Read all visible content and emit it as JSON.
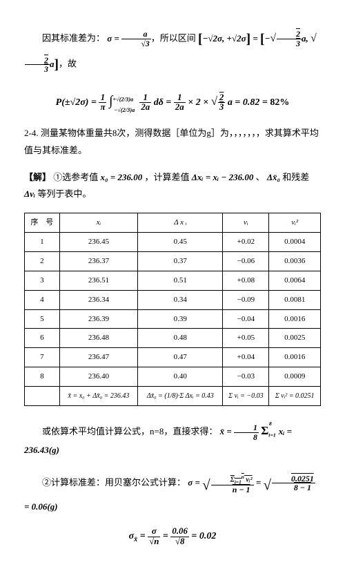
{
  "line1_cn1": "因其标准差为：",
  "line1_cn2": "，所以区间",
  "line1_cn3": "，故",
  "formula1a": "σ = a⁄√3",
  "formula1b": "[−√2σ, +√2σ]",
  "formula1c_left": "−",
  "formula1c_right": "a,",
  "formula1c_num": "2",
  "formula1c_den": "3",
  "formula2_lhs": "P(±√2σ) =",
  "formula2_mid1": "dδ =",
  "formula2_mid2": "× 2 ×",
  "formula2_rhs": "a = 0.82 = 82%",
  "problem_label": "2-4.",
  "problem_text": "测量某物体重量共8次，测得数据［单位为g］为，，，，，，，求其算术平均值与其标准差。",
  "solution_label": "【解】",
  "step1_cn1": "①选参考值 ",
  "step1_x0": "x₀ = 236.00",
  "step1_cn2": "，计算差值 ",
  "step1_dx": "Δxᵢ = xᵢ − 236.00",
  "step1_cn3": "、",
  "step1_dx0": "Δx̄₀",
  "step1_cn4": " 和残差 ",
  "step1_dv": "Δvᵢ",
  "step1_cn5": " 等列于表中。",
  "table": {
    "headers": [
      "序　号",
      "xᵢ",
      "Δ x ᵢ",
      "vᵢ",
      "vᵢ²"
    ],
    "rows": [
      [
        "1",
        "236.45",
        "0.45",
        "+0.02",
        "0.0004"
      ],
      [
        "2",
        "236.37",
        "0.37",
        "−0.06",
        "0.0036"
      ],
      [
        "3",
        "236.51",
        "0.51",
        "+0.08",
        "0.0064"
      ],
      [
        "4",
        "236.34",
        "0.34",
        "−0.09",
        "0.0081"
      ],
      [
        "5",
        "236.39",
        "0.39",
        "−0.04",
        "0.0016"
      ],
      [
        "6",
        "236.48",
        "0.48",
        "+0.05",
        "0.0025"
      ],
      [
        "7",
        "236.47",
        "0.47",
        "+0.04",
        "0.0016"
      ],
      [
        "8",
        "236.40",
        "0.40",
        "−0.03",
        "0.0009"
      ]
    ],
    "summary": [
      "",
      "x̄ = x₀ + Δx̄₀ = 236.43",
      "Δx̄₀ = (1/8)·Σ Δxᵢ = 0.43",
      "Σ vᵢ = −0.03",
      "Σ vᵢ² = 0.0251"
    ]
  },
  "step_alt_cn1": "或依算术平均值计算公式，n=8，直接求得：",
  "step_alt_f": "x̄ =",
  "step_alt_val": "= 236.43(g)",
  "step2_cn": "②计算标准差：用贝塞尔公式计算：",
  "step2_val": "= 0.06(g)",
  "step2_inner": "0.0251",
  "step2_den": "8 − 1",
  "step3_lhs": "σx̄ =",
  "step3_num": "0.06",
  "step3_den": "√8",
  "step3_val": "= 0.02"
}
